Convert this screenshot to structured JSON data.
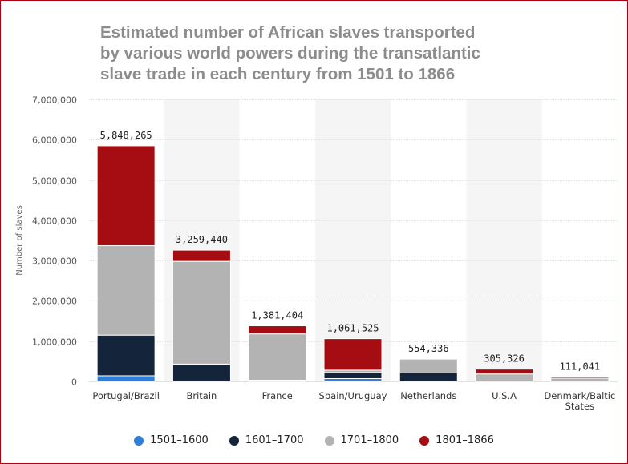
{
  "chart_data": {
    "type": "bar",
    "stacked": true,
    "title_lines": [
      "Estimated number of African slaves transported",
      "by various world powers during the transatlantic",
      "slave trade in each century from 1501 to 1866"
    ],
    "ylabel": "Number of slaves",
    "xlabel": "",
    "ylim": [
      0,
      7000000
    ],
    "yticks": [
      "0",
      "1,000,000",
      "2,000,000",
      "3,000,000",
      "4,000,000",
      "5,000,000",
      "6,000,000",
      "7,000,000"
    ],
    "grid": true,
    "legend_position": "bottom",
    "categories": [
      [
        "Portugal/Brazil"
      ],
      [
        "Britain"
      ],
      [
        "France"
      ],
      [
        "Spain/Uruguay"
      ],
      [
        "Netherlands"
      ],
      [
        "U.S.A"
      ],
      [
        "Denmark/Baltic",
        "States"
      ]
    ],
    "totals": [
      "5,848,265",
      "3,259,440",
      "1,381,404",
      "1,061,525",
      "554,336",
      "305,326",
      "111,041"
    ],
    "series": [
      {
        "name": "1501-1600",
        "color": "#2f7ed8",
        "values": [
          140000,
          0,
          0,
          70000,
          0,
          0,
          0
        ]
      },
      {
        "name": "1601-1700",
        "color": "#14243b",
        "values": [
          1010000,
          430000,
          30000,
          150000,
          210000,
          0,
          0
        ]
      },
      {
        "name": "1701-1800",
        "color": "#b3b3b3",
        "values": [
          2220000,
          2550000,
          1150000,
          60000,
          344336,
          185000,
          80000
        ]
      },
      {
        "name": "1801-1866",
        "color": "#a50d12",
        "values": [
          2478265,
          279440,
          201404,
          781525,
          0,
          120326,
          31041
        ]
      }
    ]
  }
}
